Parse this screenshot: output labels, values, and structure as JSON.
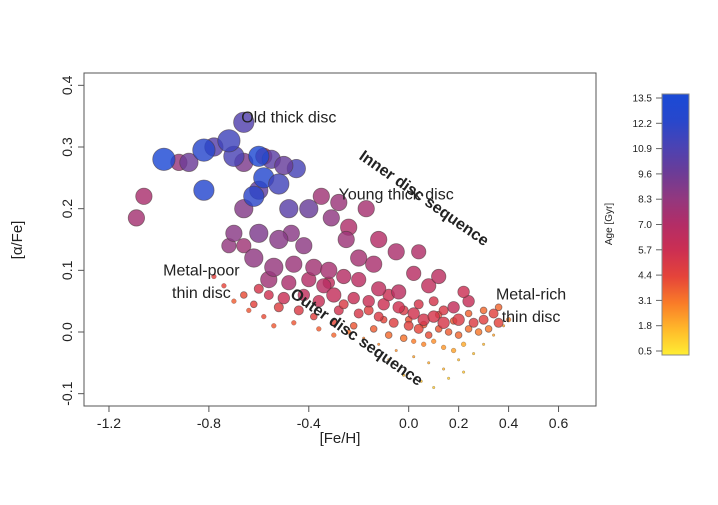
{
  "chart_data": {
    "type": "scatter",
    "title": "",
    "xlabel": "[Fe/H]",
    "ylabel": "[α/Fe]",
    "xlim": [
      -1.3,
      0.75
    ],
    "ylim": [
      -0.12,
      0.42
    ],
    "xticks": [
      "-1.2",
      "-0.8",
      "-0.4",
      "0.0",
      "0.2",
      "0.4",
      "0.6"
    ],
    "xtick_values": [
      -1.2,
      -0.8,
      -0.4,
      0.0,
      0.2,
      0.4,
      0.6
    ],
    "yticks": [
      "-0.1",
      "0.0",
      "0.1",
      "0.2",
      "0.3",
      "0.4"
    ],
    "ytick_values": [
      -0.1,
      0.0,
      0.1,
      0.2,
      0.3,
      0.4
    ],
    "grid": false,
    "annotations": [
      {
        "text": "Old thick disc",
        "x": -0.48,
        "y": 0.34,
        "style": "region"
      },
      {
        "text": "Young thick disc",
        "x": -0.05,
        "y": 0.215,
        "style": "region"
      },
      {
        "text": "Metal-poor",
        "x": -0.83,
        "y": 0.092,
        "style": "region"
      },
      {
        "text": "thin disc",
        "x": -0.83,
        "y": 0.055,
        "style": "region"
      },
      {
        "text": "Metal-rich",
        "x": 0.49,
        "y": 0.053,
        "style": "region"
      },
      {
        "text": "thin disc",
        "x": 0.49,
        "y": 0.016,
        "style": "region"
      },
      {
        "text": "Inner disc sequence",
        "x": 0.05,
        "y": 0.21,
        "style": "seq",
        "angle": 35
      },
      {
        "text": "Outer disc sequence",
        "x": -0.22,
        "y": -0.015,
        "style": "seq",
        "angle": 35
      }
    ],
    "colorbar": {
      "label": "Age [Gyr]",
      "ticks": [
        "13.5",
        "12.2",
        "10.9",
        "9.6",
        "8.3",
        "7.0",
        "5.7",
        "4.4",
        "3.1",
        "1.8",
        "0.5"
      ],
      "min": 0.5,
      "max": 13.5,
      "colors": [
        "#ffee33",
        "#ffb82a",
        "#f97b28",
        "#e5443a",
        "#cc2f52",
        "#b32d66",
        "#92387f",
        "#6b3c97",
        "#4a43b4",
        "#2747cc",
        "#1a4ad6"
      ]
    },
    "points_note": "[feh, alpha_fe, age_gyr, size_class]",
    "points": [
      [
        -0.98,
        0.28,
        13.2,
        10
      ],
      [
        -0.82,
        0.295,
        12.2,
        10
      ],
      [
        -0.72,
        0.31,
        11.3,
        10
      ],
      [
        -0.6,
        0.285,
        13.0,
        9
      ],
      [
        -0.58,
        0.25,
        12.5,
        9
      ],
      [
        -0.66,
        0.34,
        10.6,
        9
      ],
      [
        -0.82,
        0.23,
        12.4,
        9
      ],
      [
        -0.7,
        0.285,
        10.9,
        9
      ],
      [
        -0.62,
        0.22,
        12.0,
        9
      ],
      [
        -0.52,
        0.24,
        11.2,
        9
      ],
      [
        -0.45,
        0.265,
        11.0,
        8
      ],
      [
        -0.55,
        0.28,
        10.2,
        8
      ],
      [
        -0.48,
        0.2,
        10.3,
        8
      ],
      [
        -0.4,
        0.2,
        9.7,
        8
      ],
      [
        -0.6,
        0.23,
        10.1,
        8
      ],
      [
        -0.5,
        0.27,
        9.8,
        8
      ],
      [
        -0.88,
        0.275,
        9.6,
        8
      ],
      [
        -0.78,
        0.3,
        10.4,
        8
      ],
      [
        -1.09,
        0.185,
        7.6,
        7
      ],
      [
        -1.06,
        0.22,
        7.4,
        7
      ],
      [
        -0.92,
        0.275,
        8.1,
        7
      ],
      [
        -0.66,
        0.275,
        9.0,
        8
      ],
      [
        -0.58,
        0.285,
        7.0,
        7
      ],
      [
        -0.35,
        0.22,
        7.8,
        7
      ],
      [
        -0.28,
        0.21,
        8.0,
        7
      ],
      [
        -0.17,
        0.2,
        7.5,
        7
      ],
      [
        -0.31,
        0.185,
        8.4,
        7
      ],
      [
        -0.24,
        0.17,
        7.2,
        7
      ],
      [
        -0.12,
        0.15,
        7.0,
        7
      ],
      [
        -0.05,
        0.13,
        7.3,
        7
      ],
      [
        -0.2,
        0.12,
        7.6,
        7
      ],
      [
        -0.14,
        0.11,
        7.4,
        7
      ],
      [
        -0.25,
        0.15,
        7.9,
        7
      ],
      [
        -0.66,
        0.2,
        8.8,
        8
      ],
      [
        -0.6,
        0.16,
        9.0,
        8
      ],
      [
        -0.52,
        0.15,
        8.7,
        8
      ],
      [
        -0.62,
        0.12,
        8.4,
        8
      ],
      [
        -0.54,
        0.105,
        8.2,
        8
      ],
      [
        -0.46,
        0.11,
        8.0,
        7
      ],
      [
        -0.38,
        0.105,
        7.7,
        7
      ],
      [
        -0.32,
        0.1,
        7.5,
        7
      ],
      [
        -0.47,
        0.16,
        8.6,
        7
      ],
      [
        -0.42,
        0.14,
        8.5,
        7
      ],
      [
        -0.56,
        0.085,
        7.8,
        7
      ],
      [
        -0.48,
        0.08,
        7.3,
        6
      ],
      [
        -0.4,
        0.085,
        7.0,
        6
      ],
      [
        -0.34,
        0.075,
        6.8,
        6
      ],
      [
        -0.26,
        0.09,
        6.9,
        6
      ],
      [
        -0.2,
        0.085,
        6.7,
        6
      ],
      [
        -0.12,
        0.07,
        6.5,
        6
      ],
      [
        -0.04,
        0.065,
        6.6,
        6
      ],
      [
        0.02,
        0.095,
        6.8,
        6
      ],
      [
        0.04,
        0.13,
        7.1,
        6
      ],
      [
        0.08,
        0.075,
        6.4,
        6
      ],
      [
        0.12,
        0.09,
        6.6,
        6
      ],
      [
        0.18,
        0.04,
        6.2,
        5
      ],
      [
        0.24,
        0.05,
        6.1,
        5
      ],
      [
        -0.7,
        0.16,
        8.6,
        7
      ],
      [
        -0.72,
        0.14,
        8.3,
        6
      ],
      [
        -0.66,
        0.14,
        7.8,
        6
      ],
      [
        -0.3,
        0.06,
        6.2,
        6
      ],
      [
        -0.22,
        0.055,
        6.0,
        5
      ],
      [
        -0.16,
        0.05,
        5.9,
        5
      ],
      [
        -0.1,
        0.045,
        5.7,
        5
      ],
      [
        -0.04,
        0.04,
        5.6,
        5
      ],
      [
        0.02,
        0.03,
        5.5,
        5
      ],
      [
        0.06,
        0.02,
        5.4,
        5
      ],
      [
        0.1,
        0.025,
        5.3,
        5
      ],
      [
        0.14,
        0.015,
        5.2,
        5
      ],
      [
        0.2,
        0.02,
        5.0,
        5
      ],
      [
        0.26,
        0.015,
        4.9,
        4
      ],
      [
        0.3,
        0.02,
        4.7,
        4
      ],
      [
        0.34,
        0.03,
        4.6,
        4
      ],
      [
        0.36,
        0.015,
        4.5,
        4
      ],
      [
        0.22,
        0.065,
        5.8,
        5
      ],
      [
        -0.36,
        0.05,
        6.0,
        5
      ],
      [
        -0.42,
        0.06,
        6.3,
        5
      ],
      [
        -0.5,
        0.055,
        5.9,
        5
      ],
      [
        -0.56,
        0.06,
        5.6,
        4
      ],
      [
        -0.6,
        0.07,
        5.3,
        4
      ],
      [
        -0.28,
        0.035,
        5.5,
        4
      ],
      [
        -0.2,
        0.03,
        5.2,
        4
      ],
      [
        -0.12,
        0.025,
        5.0,
        4
      ],
      [
        -0.06,
        0.015,
        4.8,
        4
      ],
      [
        0.0,
        0.01,
        4.6,
        4
      ],
      [
        0.04,
        0.005,
        4.4,
        4
      ],
      [
        0.08,
        -0.005,
        4.2,
        3
      ],
      [
        0.12,
        0.005,
        4.0,
        3
      ],
      [
        0.16,
        0.0,
        3.8,
        3
      ],
      [
        0.2,
        -0.005,
        3.6,
        3
      ],
      [
        0.24,
        0.005,
        3.4,
        3
      ],
      [
        0.28,
        0.0,
        3.2,
        3
      ],
      [
        -0.02,
        0.035,
        5.1,
        4
      ],
      [
        0.04,
        0.045,
        5.3,
        4
      ],
      [
        0.1,
        0.05,
        5.4,
        4
      ],
      [
        0.14,
        0.035,
        5.1,
        4
      ],
      [
        -0.32,
        0.08,
        6.4,
        5
      ],
      [
        -0.08,
        0.06,
        5.8,
        5
      ],
      [
        -0.44,
        0.035,
        5.0,
        4
      ],
      [
        -0.52,
        0.04,
        4.8,
        4
      ],
      [
        -0.62,
        0.045,
        4.5,
        3
      ],
      [
        -0.66,
        0.06,
        4.2,
        3
      ],
      [
        -0.38,
        0.025,
        4.6,
        3
      ],
      [
        -0.3,
        0.015,
        4.3,
        3
      ],
      [
        -0.22,
        0.01,
        4.0,
        3
      ],
      [
        -0.14,
        0.005,
        3.8,
        3
      ],
      [
        -0.08,
        -0.005,
        3.5,
        3
      ],
      [
        -0.02,
        -0.01,
        3.3,
        3
      ],
      [
        0.02,
        -0.015,
        3.1,
        2
      ],
      [
        0.06,
        -0.02,
        2.9,
        2
      ],
      [
        0.1,
        -0.015,
        2.7,
        2
      ],
      [
        0.14,
        -0.025,
        2.5,
        2
      ],
      [
        0.18,
        -0.03,
        2.3,
        2
      ],
      [
        0.22,
        -0.02,
        2.1,
        2
      ],
      [
        -0.26,
        0.045,
        5.0,
        4
      ],
      [
        -0.16,
        0.035,
        4.7,
        4
      ],
      [
        -0.1,
        0.02,
        4.4,
        3
      ],
      [
        0.0,
        0.02,
        4.1,
        3
      ],
      [
        0.06,
        0.012,
        3.9,
        3
      ],
      [
        0.12,
        0.028,
        4.3,
        3
      ],
      [
        0.18,
        0.018,
        3.9,
        3
      ],
      [
        0.24,
        0.03,
        3.7,
        3
      ],
      [
        0.3,
        0.035,
        3.5,
        3
      ],
      [
        0.32,
        0.005,
        3.2,
        3
      ],
      [
        0.36,
        0.04,
        3.6,
        3
      ],
      [
        0.4,
        0.02,
        3.0,
        2
      ],
      [
        -0.05,
        -0.03,
        2.6,
        1
      ],
      [
        0.02,
        -0.04,
        2.3,
        1
      ],
      [
        0.08,
        -0.05,
        2.1,
        1
      ],
      [
        0.14,
        -0.06,
        1.9,
        1
      ],
      [
        0.2,
        -0.045,
        1.7,
        1
      ],
      [
        0.26,
        -0.035,
        1.6,
        1
      ],
      [
        -0.12,
        -0.02,
        2.8,
        1
      ],
      [
        -0.18,
        -0.01,
        3.0,
        1
      ],
      [
        0.05,
        -0.08,
        1.5,
        1
      ],
      [
        0.1,
        -0.09,
        1.4,
        1
      ],
      [
        -0.02,
        -0.07,
        1.6,
        1
      ],
      [
        0.3,
        -0.02,
        1.8,
        1
      ],
      [
        0.16,
        -0.075,
        1.3,
        1
      ],
      [
        -0.08,
        -0.045,
        2.0,
        1
      ],
      [
        0.22,
        -0.065,
        1.5,
        1
      ],
      [
        0.34,
        -0.005,
        2.2,
        1
      ],
      [
        0.38,
        0.01,
        2.4,
        1
      ],
      [
        -0.24,
        0.0,
        3.4,
        2
      ],
      [
        -0.3,
        -0.005,
        3.6,
        2
      ],
      [
        -0.36,
        0.005,
        3.8,
        2
      ],
      [
        -0.46,
        0.015,
        4.0,
        2
      ],
      [
        -0.58,
        0.025,
        4.2,
        2
      ],
      [
        -0.64,
        0.035,
        4.0,
        2
      ],
      [
        -0.7,
        0.05,
        3.8,
        2
      ],
      [
        -0.74,
        0.075,
        4.4,
        2
      ],
      [
        -0.78,
        0.09,
        4.6,
        2
      ],
      [
        -0.54,
        0.01,
        3.9,
        2
      ]
    ]
  }
}
